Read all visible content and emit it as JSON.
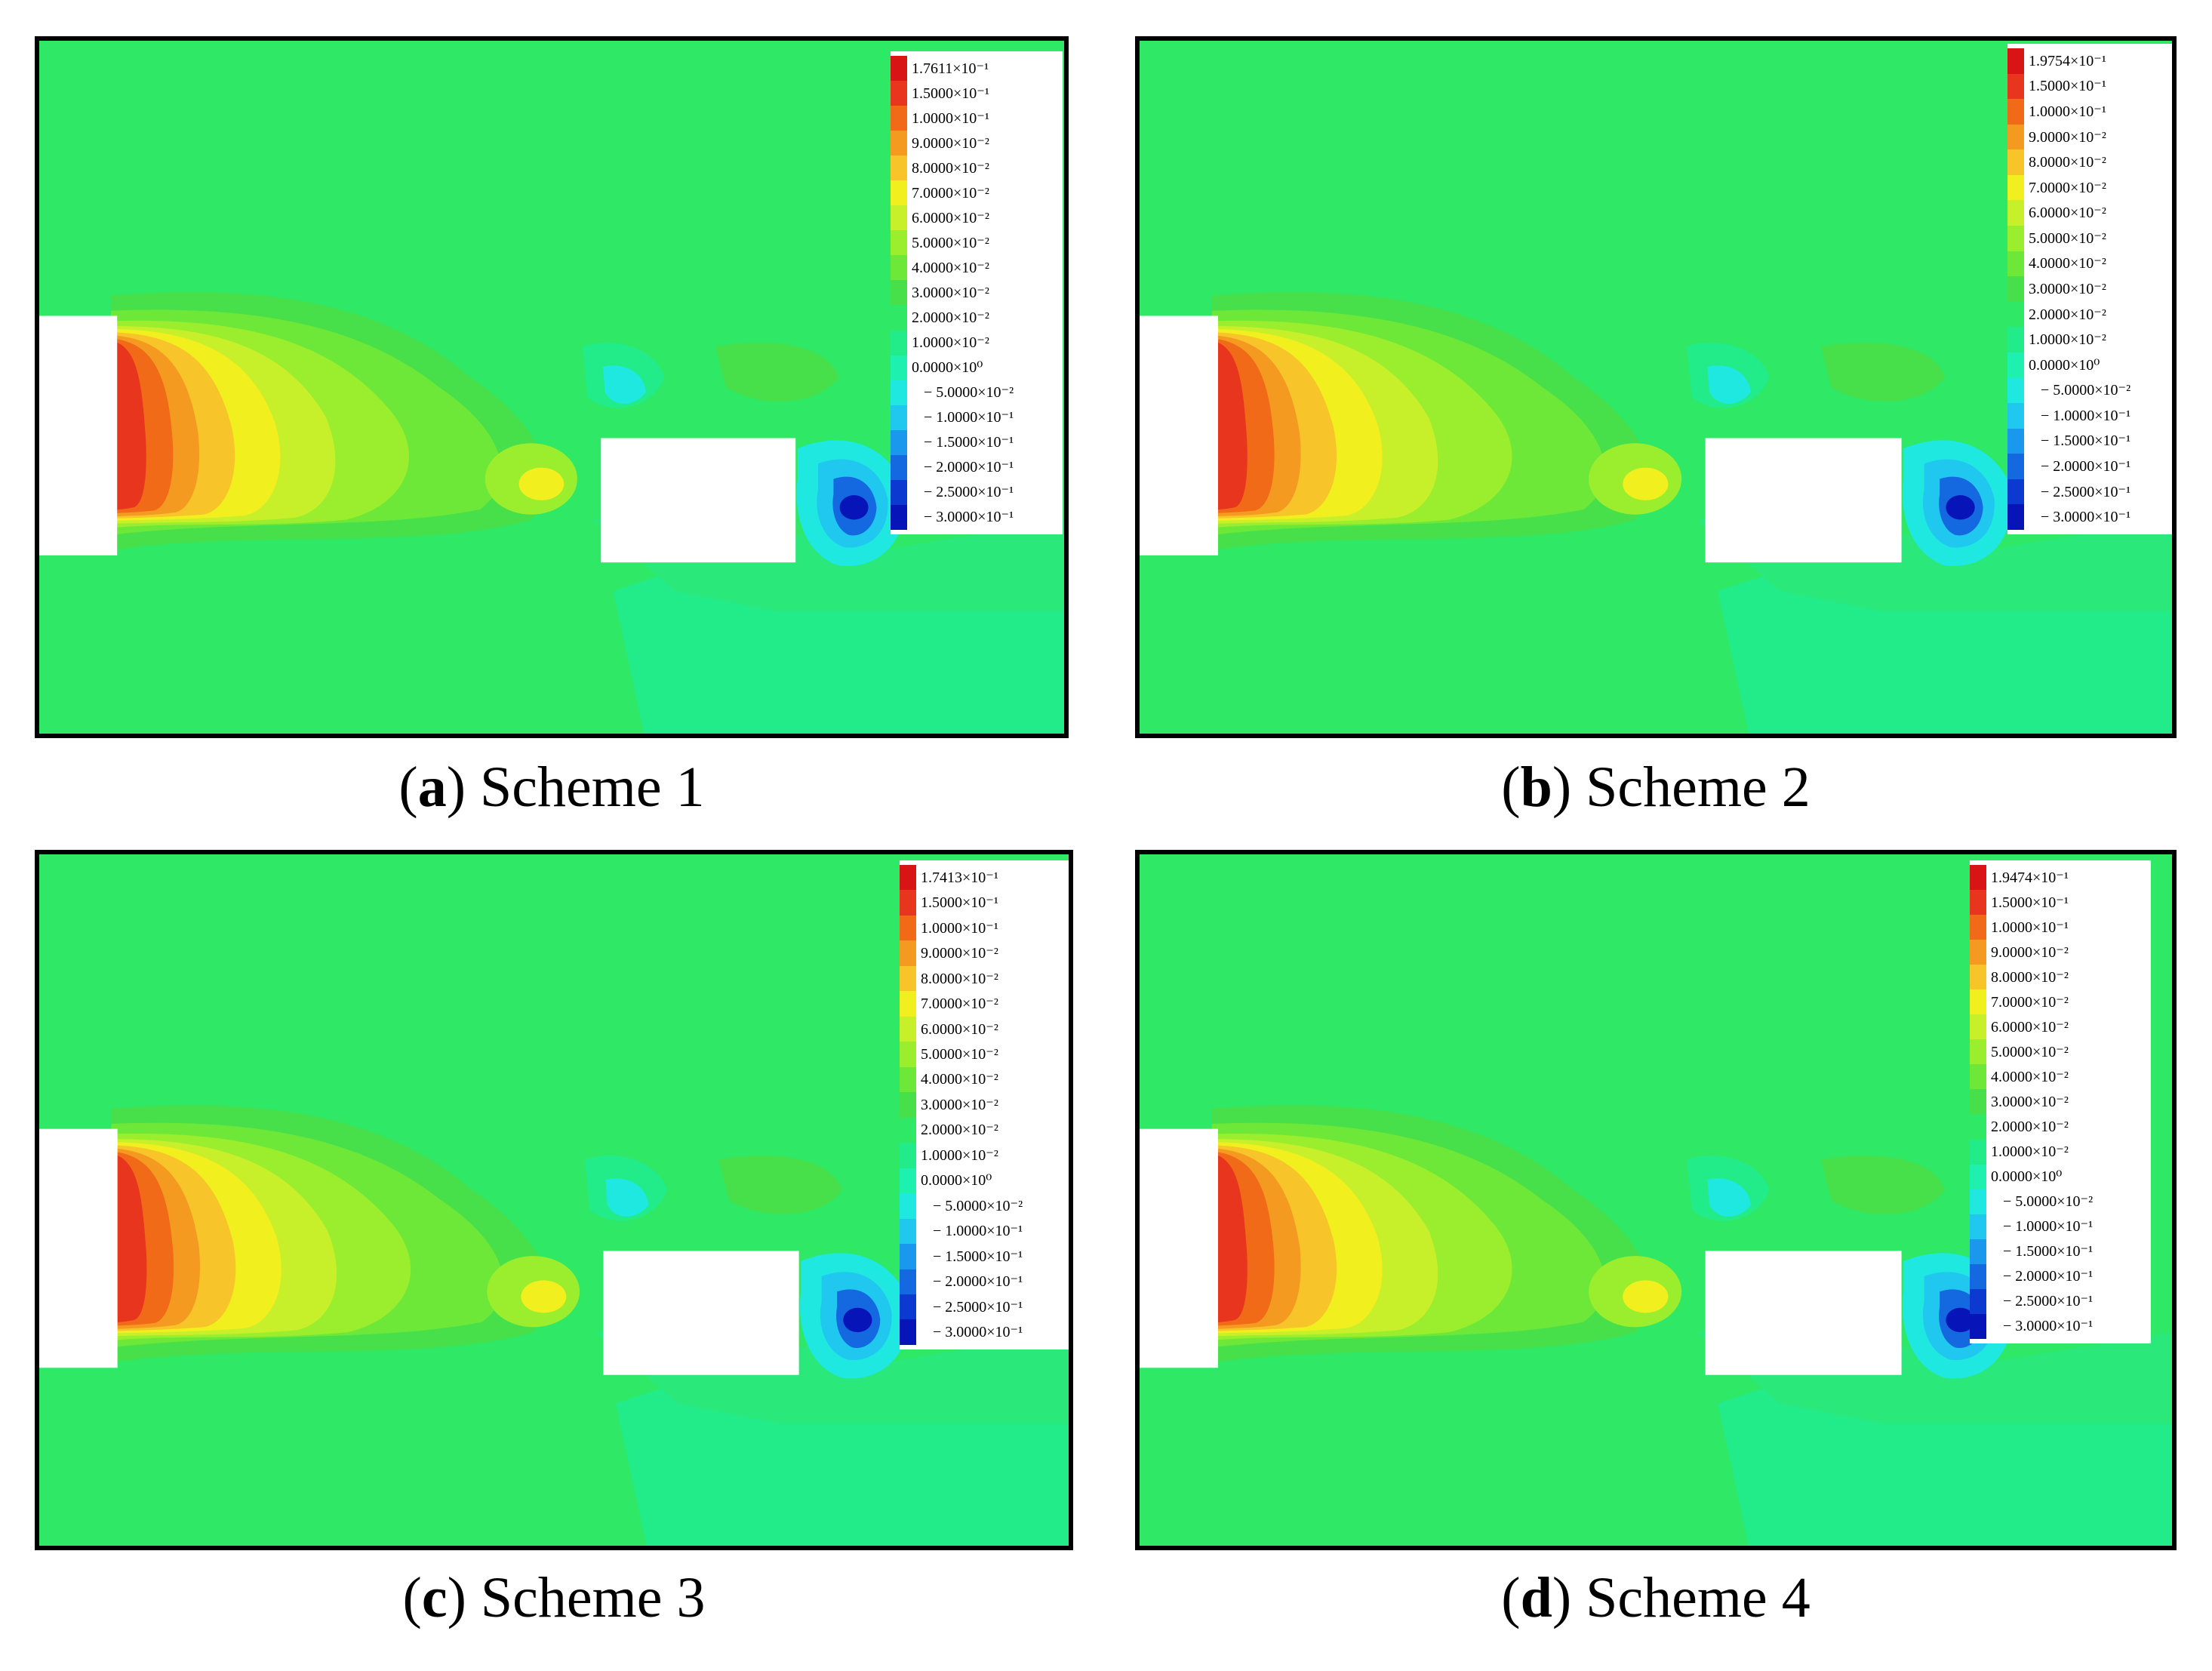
{
  "panels": [
    {
      "id": "a",
      "letter": "a",
      "title": "Scheme 1",
      "legend_max": "1.7611×10⁻¹"
    },
    {
      "id": "b",
      "letter": "b",
      "title": "Scheme 2",
      "legend_max": "1.9754×10⁻¹"
    },
    {
      "id": "c",
      "letter": "c",
      "title": "Scheme 3",
      "legend_max": "1.7413×10⁻¹"
    },
    {
      "id": "d",
      "letter": "d",
      "title": "Scheme 4",
      "legend_max": "1.9474×10⁻¹"
    }
  ],
  "legend_levels": [
    {
      "label": "1.5000×10⁻¹",
      "color": "#e8351e"
    },
    {
      "label": "1.0000×10⁻¹",
      "color": "#f06a18"
    },
    {
      "label": "9.0000×10⁻²",
      "color": "#f59a20"
    },
    {
      "label": "8.0000×10⁻²",
      "color": "#f7c42a"
    },
    {
      "label": "7.0000×10⁻²",
      "color": "#f2ef1e"
    },
    {
      "label": "6.0000×10⁻²",
      "color": "#c8f02a"
    },
    {
      "label": "5.0000×10⁻²",
      "color": "#9aee2e"
    },
    {
      "label": "4.0000×10⁻²",
      "color": "#6ee838"
    },
    {
      "label": "3.0000×10⁻²",
      "color": "#47e04a"
    },
    {
      "label": "2.0000×10⁻²",
      "color": "#2ee866"
    },
    {
      "label": "1.0000×10⁻²",
      "color": "#22ec8a"
    },
    {
      "label": "0.0000×10⁰",
      "color": "#1ef0b0"
    },
    {
      "label": "− 5.0000×10⁻²",
      "color": "#1ee8e0"
    },
    {
      "label": "− 1.0000×10⁻¹",
      "color": "#20c8f0"
    },
    {
      "label": "− 1.5000×10⁻¹",
      "color": "#1a98ee"
    },
    {
      "label": "− 2.0000×10⁻¹",
      "color": "#1468e0"
    },
    {
      "label": "− 2.5000×10⁻¹",
      "color": "#0c3ad0"
    },
    {
      "label": "− 3.0000×10⁻¹",
      "color": "#0614b8"
    }
  ],
  "max_color": "#d81414"
}
